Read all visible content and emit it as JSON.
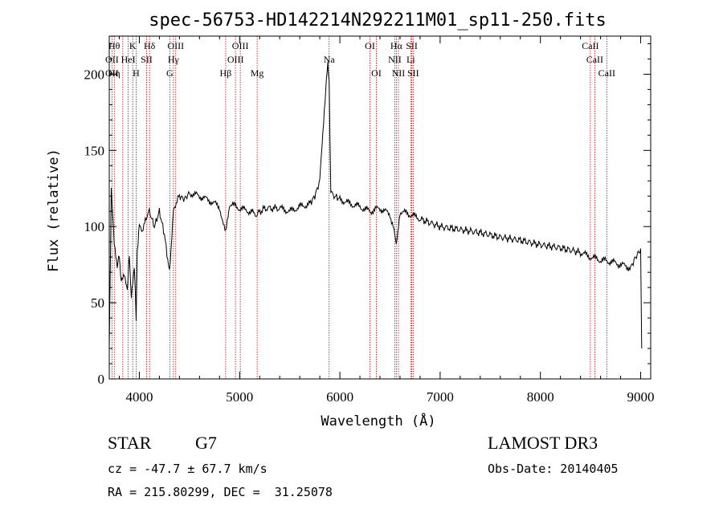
{
  "chart_data": {
    "type": "line",
    "title": "spec-56753-HD142214N292211M01_sp11-250.fits",
    "xlabel": "Wavelength (Å)",
    "ylabel": "Flux (relative)",
    "xlim": [
      3700,
      9100
    ],
    "ylim": [
      0,
      225
    ],
    "x_ticks": [
      4000,
      5000,
      6000,
      7000,
      8000,
      9000
    ],
    "y_ticks": [
      0,
      50,
      100,
      150,
      200
    ],
    "series": [
      {
        "name": "flux",
        "x": [
          3700,
          3720,
          3750,
          3780,
          3800,
          3820,
          3850,
          3880,
          3900,
          3920,
          3950,
          3968,
          3980,
          4000,
          4030,
          4060,
          4100,
          4150,
          4200,
          4250,
          4300,
          4340,
          4360,
          4400,
          4450,
          4500,
          4600,
          4700,
          4800,
          4861,
          4900,
          5000,
          5100,
          5170,
          5250,
          5400,
          5500,
          5600,
          5700,
          5750,
          5800,
          5830,
          5860,
          5880,
          5893,
          5910,
          5950,
          6000,
          6100,
          6200,
          6300,
          6400,
          6500,
          6563,
          6600,
          6700,
          6800,
          7000,
          7200,
          7400,
          7600,
          7800,
          8000,
          8200,
          8400,
          8500,
          8600,
          8700,
          8800,
          8900,
          8950,
          9000,
          9010
        ],
        "y": [
          20,
          125,
          90,
          75,
          80,
          65,
          70,
          60,
          80,
          55,
          75,
          40,
          85,
          100,
          95,
          105,
          110,
          100,
          110,
          95,
          70,
          110,
          115,
          120,
          118,
          122,
          120,
          117,
          113,
          95,
          115,
          112,
          110,
          108,
          112,
          112,
          110,
          113,
          115,
          120,
          130,
          160,
          190,
          208,
          195,
          122,
          120,
          118,
          115,
          113,
          110,
          112,
          108,
          90,
          110,
          108,
          105,
          100,
          98,
          96,
          93,
          91,
          88,
          86,
          83,
          80,
          78,
          77,
          75,
          73,
          80,
          85,
          20
        ]
      }
    ],
    "spectral_lines": [
      {
        "x": 3727,
        "rows": [
          "",
          "OII",
          "OII"
        ]
      },
      {
        "x": 3750,
        "rows": [
          "Hθ",
          "",
          "Hη"
        ]
      },
      {
        "x": 3835,
        "rows": [
          "",
          "",
          ""
        ]
      },
      {
        "x": 3889,
        "rows": [
          "",
          "HeI",
          ""
        ]
      },
      {
        "x": 3934,
        "rows": [
          "K",
          "",
          ""
        ]
      },
      {
        "x": 3968,
        "rows": [
          "",
          "",
          "H"
        ]
      },
      {
        "x": 4072,
        "rows": [
          "",
          "SII",
          ""
        ]
      },
      {
        "x": 4102,
        "rows": [
          "Hδ",
          "",
          ""
        ]
      },
      {
        "x": 4304,
        "rows": [
          "",
          "",
          "G"
        ]
      },
      {
        "x": 4340,
        "rows": [
          "",
          "Hγ",
          ""
        ]
      },
      {
        "x": 4363,
        "rows": [
          "OIII",
          "",
          ""
        ]
      },
      {
        "x": 4861,
        "rows": [
          "",
          "",
          "Hβ"
        ]
      },
      {
        "x": 4959,
        "rows": [
          "",
          "OIII",
          ""
        ]
      },
      {
        "x": 5007,
        "rows": [
          "OIII",
          "",
          ""
        ]
      },
      {
        "x": 5175,
        "rows": [
          "",
          "",
          "Mg"
        ]
      },
      {
        "x": 5893,
        "rows": [
          "",
          "Na",
          ""
        ]
      },
      {
        "x": 6300,
        "rows": [
          "OI",
          "",
          ""
        ]
      },
      {
        "x": 6364,
        "rows": [
          "",
          "",
          "OI"
        ]
      },
      {
        "x": 6548,
        "rows": [
          "",
          "NII",
          ""
        ]
      },
      {
        "x": 6563,
        "rows": [
          "Hα",
          "",
          ""
        ]
      },
      {
        "x": 6584,
        "rows": [
          "",
          "",
          "NII"
        ]
      },
      {
        "x": 6707,
        "rows": [
          "",
          "Li",
          ""
        ]
      },
      {
        "x": 6717,
        "rows": [
          "SII",
          "",
          ""
        ]
      },
      {
        "x": 6731,
        "rows": [
          "",
          "",
          "SII"
        ]
      },
      {
        "x": 8498,
        "rows": [
          "CaII",
          "",
          ""
        ]
      },
      {
        "x": 8542,
        "rows": [
          "",
          "CaII",
          ""
        ]
      },
      {
        "x": 8662,
        "rows": [
          "",
          "",
          "CaII"
        ]
      }
    ]
  },
  "info": {
    "class_label": "STAR",
    "subclass": "G7",
    "survey": "LAMOST DR3",
    "redshift": "cz = -47.7 ± 67.7 km/s",
    "obs_date": "Obs-Date: 20140405",
    "coordinates": "RA = 215.80299, DEC =  31.25078"
  }
}
